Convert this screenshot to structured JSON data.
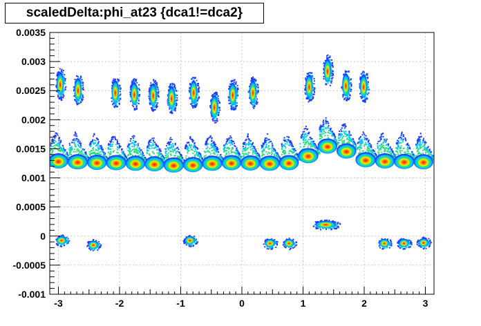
{
  "chart_data": {
    "type": "heatmap",
    "title": "scaledDelta:phi_at23 {dca1!=dca2}",
    "xlabel": "",
    "ylabel": "",
    "xlim": [
      -3.1416,
      3.1416
    ],
    "ylim": [
      -0.001,
      0.0035
    ],
    "grid": true,
    "x_ticks": [
      {
        "value": -3,
        "label": "-3"
      },
      {
        "value": -2,
        "label": "-2"
      },
      {
        "value": -1,
        "label": "-1"
      },
      {
        "value": 0,
        "label": "0"
      },
      {
        "value": 1,
        "label": "1"
      },
      {
        "value": 2,
        "label": "2"
      },
      {
        "value": 3,
        "label": "3"
      }
    ],
    "y_ticks": [
      {
        "value": -0.001,
        "label": "-0.001"
      },
      {
        "value": -0.0005,
        "label": "-0.0005"
      },
      {
        "value": 0,
        "label": "0"
      },
      {
        "value": 0.0005,
        "label": "0.0005"
      },
      {
        "value": 0.001,
        "label": "0.001"
      },
      {
        "value": 0.0015,
        "label": "0.0015"
      },
      {
        "value": 0.002,
        "label": "0.002"
      },
      {
        "value": 0.0025,
        "label": "0.0025"
      },
      {
        "value": 0.003,
        "label": "0.003"
      },
      {
        "value": 0.0035,
        "label": "0.0035"
      }
    ],
    "colors": {
      "low": "#1e3cff",
      "mid_low": "#00c8ff",
      "mid": "#22e07a",
      "mid_high": "#f0f000",
      "high": "#ff8800",
      "peak": "#e8120c",
      "grid": "#c8c8c8"
    },
    "band_main": {
      "x": [
        -3.14,
        -2.83,
        -2.51,
        -2.2,
        -1.88,
        -1.57,
        -1.26,
        -0.94,
        -0.63,
        -0.31,
        0.0,
        0.31,
        0.63,
        0.94,
        1.26,
        1.57,
        1.88,
        2.2,
        2.51,
        2.83,
        3.14
      ],
      "y_peak": [
        0.00125,
        0.00124,
        0.00122,
        0.00122,
        0.00121,
        0.0012,
        0.00119,
        0.00116,
        0.0012,
        0.00121,
        0.00122,
        0.0012,
        0.00121,
        0.00122,
        0.00145,
        0.00155,
        0.00128,
        0.00125,
        0.00124,
        0.00123,
        0.00123
      ]
    },
    "clusters_upper": [
      {
        "x": -2.97,
        "y": 0.00262
      },
      {
        "x": -2.68,
        "y": 0.00252
      },
      {
        "x": -2.07,
        "y": 0.00248
      },
      {
        "x": -1.76,
        "y": 0.00245
      },
      {
        "x": -1.45,
        "y": 0.00243
      },
      {
        "x": -1.15,
        "y": 0.00238
      },
      {
        "x": -0.79,
        "y": 0.00248
      },
      {
        "x": -0.45,
        "y": 0.00223
      },
      {
        "x": -0.15,
        "y": 0.00244
      },
      {
        "x": 0.18,
        "y": 0.00248
      },
      {
        "x": 1.1,
        "y": 0.00258
      },
      {
        "x": 1.4,
        "y": 0.00285
      },
      {
        "x": 1.7,
        "y": 0.0026
      },
      {
        "x": 1.99,
        "y": 0.00258
      }
    ],
    "clusters_lower": [
      {
        "x": -2.95,
        "y": -7e-05
      },
      {
        "x": -2.43,
        "y": -0.00015
      },
      {
        "x": -0.85,
        "y": -7e-05
      },
      {
        "x": 0.46,
        "y": -0.00012
      },
      {
        "x": 0.77,
        "y": -0.00012
      },
      {
        "x": 1.37,
        "y": 0.0002
      },
      {
        "x": 2.33,
        "y": -0.00012
      },
      {
        "x": 2.65,
        "y": -0.00012
      },
      {
        "x": 2.97,
        "y": -0.00011
      }
    ]
  }
}
